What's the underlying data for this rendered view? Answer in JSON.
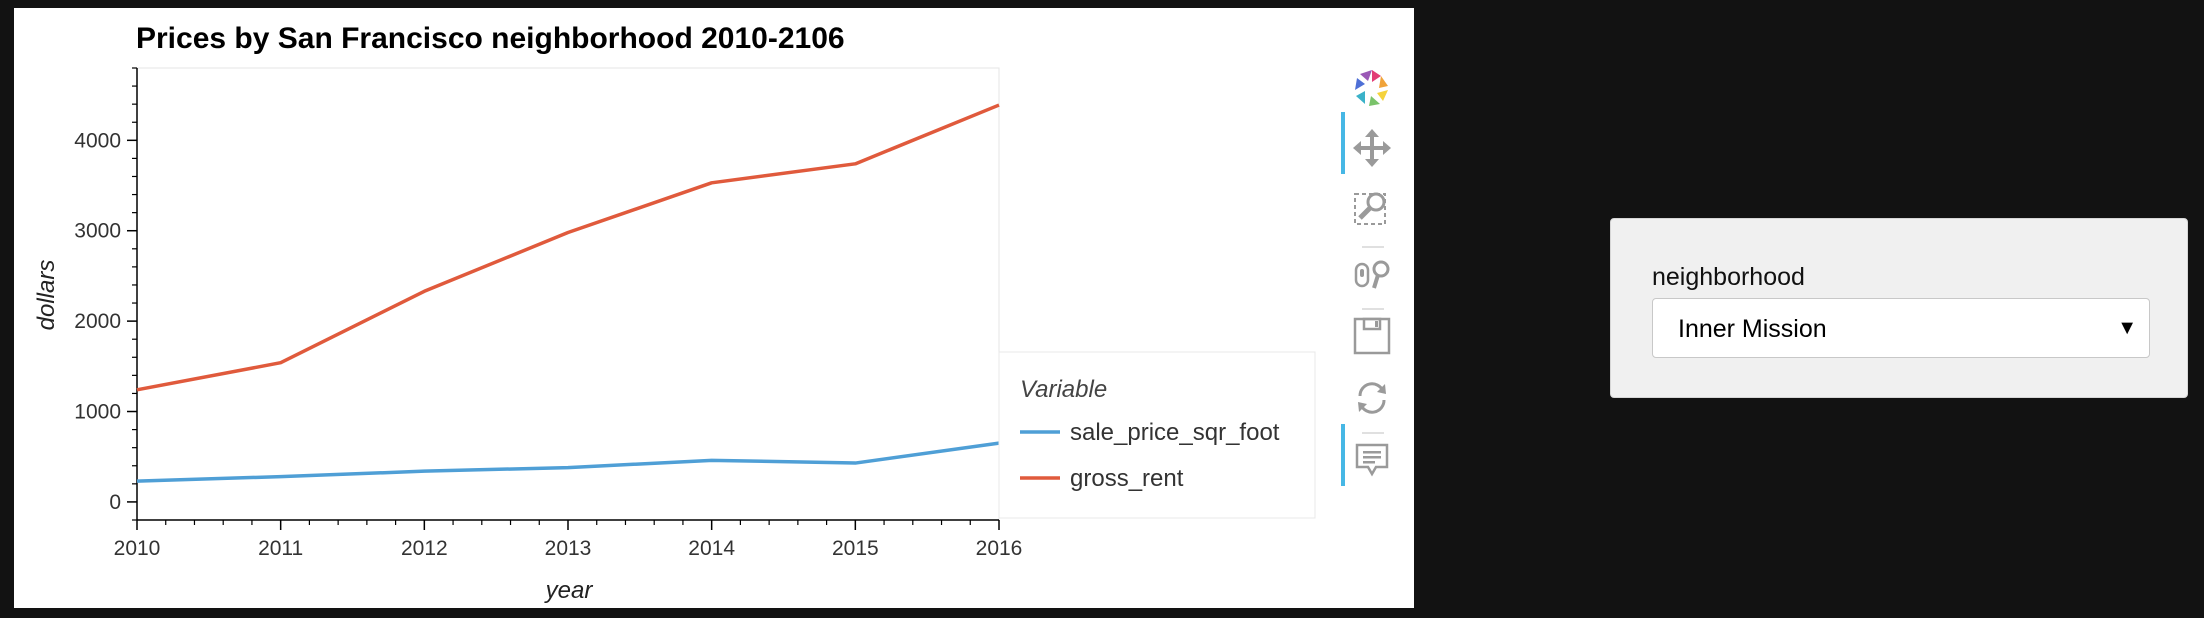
{
  "chart_data": {
    "type": "line",
    "title": "Prices by San Francisco neighborhood 2010-2106",
    "xlabel": "year",
    "ylabel": "dollars",
    "x": [
      2010,
      2011,
      2012,
      2013,
      2014,
      2015,
      2016
    ],
    "xlim": [
      2010,
      2016
    ],
    "ylim": [
      -200,
      4800
    ],
    "x_ticks": [
      2010,
      2011,
      2012,
      2013,
      2014,
      2015,
      2016
    ],
    "y_ticks": [
      0,
      1000,
      2000,
      3000,
      4000
    ],
    "grid": false,
    "legend_title": "Variable",
    "legend_position": "right",
    "series": [
      {
        "name": "sale_price_sqr_foot",
        "color": "#4f9fd6",
        "values": [
          230,
          280,
          340,
          380,
          460,
          430,
          650
        ]
      },
      {
        "name": "gross_rent",
        "color": "#e05a3c",
        "values": [
          1240,
          1540,
          2330,
          2980,
          3530,
          3740,
          4390
        ]
      }
    ]
  },
  "toolbar": {
    "tools": [
      {
        "name": "bokeh-logo-icon"
      },
      {
        "name": "pan-icon",
        "active": true
      },
      {
        "name": "box-zoom-icon"
      },
      {
        "name": "wheel-zoom-icon"
      },
      {
        "name": "save-icon"
      },
      {
        "name": "reset-icon"
      },
      {
        "name": "hover-icon",
        "active": true
      }
    ]
  },
  "widget": {
    "label": "neighborhood",
    "selected": "Inner Mission"
  }
}
